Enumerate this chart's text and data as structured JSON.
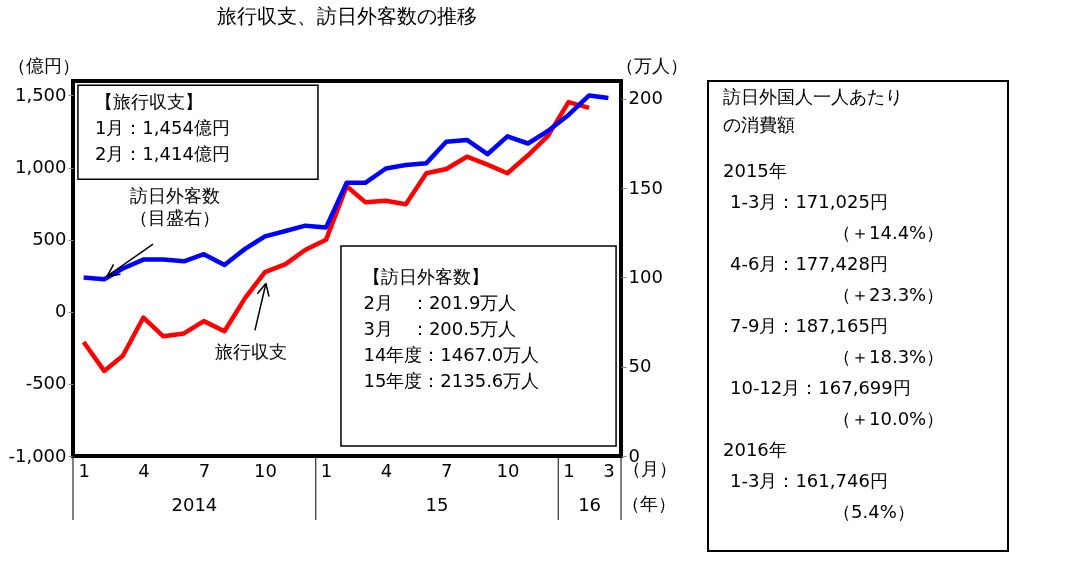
{
  "chart_data": [
    {
      "type": "line",
      "title": "旅行収支、訪日外客数の推移",
      "x": [
        "2014-01",
        "2014-02",
        "2014-03",
        "2014-04",
        "2014-05",
        "2014-06",
        "2014-07",
        "2014-08",
        "2014-09",
        "2014-10",
        "2014-11",
        "2014-12",
        "2015-01",
        "2015-02",
        "2015-03",
        "2015-04",
        "2015-05",
        "2015-06",
        "2015-07",
        "2015-08",
        "2015-09",
        "2015-10",
        "2015-11",
        "2015-12",
        "2016-01",
        "2016-02",
        "2016-03"
      ],
      "xlim": [
        "2013-12-16",
        "2016-03-20"
      ],
      "xticks": [
        {
          "value": "2014-01",
          "label": "1"
        },
        {
          "value": "2014-04",
          "label": "4"
        },
        {
          "value": "2014-07",
          "label": "7"
        },
        {
          "value": "2014-10",
          "label": "10"
        },
        {
          "value": "2015-01",
          "label": "1"
        },
        {
          "value": "2015-04",
          "label": "4"
        },
        {
          "value": "2015-07",
          "label": "7"
        },
        {
          "value": "2015-10",
          "label": "10"
        },
        {
          "value": "2016-01",
          "label": "1"
        },
        {
          "value": "2016-03",
          "label": "3"
        }
      ],
      "xlabel": "（月）",
      "ylabel": "（億円）",
      "y2label": "（万人）",
      "ylim": [
        -1000,
        1600
      ],
      "yticks": [
        {
          "value": -1000,
          "label": "-1,000"
        },
        {
          "value": -500,
          "label": "-500"
        },
        0,
        500,
        {
          "value": 1000,
          "label": "1,000"
        },
        {
          "value": 1500,
          "label": "1,500"
        }
      ],
      "y2lim": [
        0,
        210
      ],
      "y2ticks": [
        0,
        50,
        100,
        150,
        200
      ],
      "series": [
        {
          "name": "旅行収支",
          "color": "#ff0000",
          "values": [
            -210,
            -410,
            -305,
            -40,
            -170,
            -150,
            -65,
            -135,
            95,
            275,
            330,
            430,
            500,
            870,
            760,
            770,
            745,
            960,
            990,
            1075,
            1020,
            960,
            1085,
            1220,
            1454,
            1414,
            null
          ]
        },
        {
          "name": "訪日外客数",
          "color": "#0000ff",
          "axis": "y2",
          "values": [
            100,
            99,
            105,
            110,
            110,
            109,
            113,
            107,
            116,
            123,
            126,
            129,
            128,
            153,
            153,
            161,
            163,
            164,
            176,
            177,
            169,
            179,
            175,
            182,
            191,
            201.9,
            200.5
          ]
        }
      ],
      "line_style": "solid",
      "annotations": [
        "【旅行収支】\n1月：1,454億円\n2月：1,414億円",
        {
          "text": "（目盛右）",
          "x": "2014-02",
          "y": 226
        },
        "【訪日外客数】\n2月　：201.9万人\n3月　：200.5万人\n\n14年度：1467.0万人\n15年度：2135.6万人",
        "2014",
        "15",
        "16",
        "（年）"
      ]
    },
    {
      "type": "other",
      "title": "訪日外国人一人あたりの消費額",
      "annotations": [
        "2015年",
        "1-3月：171,025円",
        "（＋14.4%）",
        "4-6月：177,428円",
        "（＋23.3%）",
        "7-9月：187,165円",
        "（＋18.3%）",
        "10-12月：167,699円",
        "（＋10.0%）",
        "2016年",
        "1-3月：161,746円",
        "（5.4%）"
      ]
    }
  ]
}
